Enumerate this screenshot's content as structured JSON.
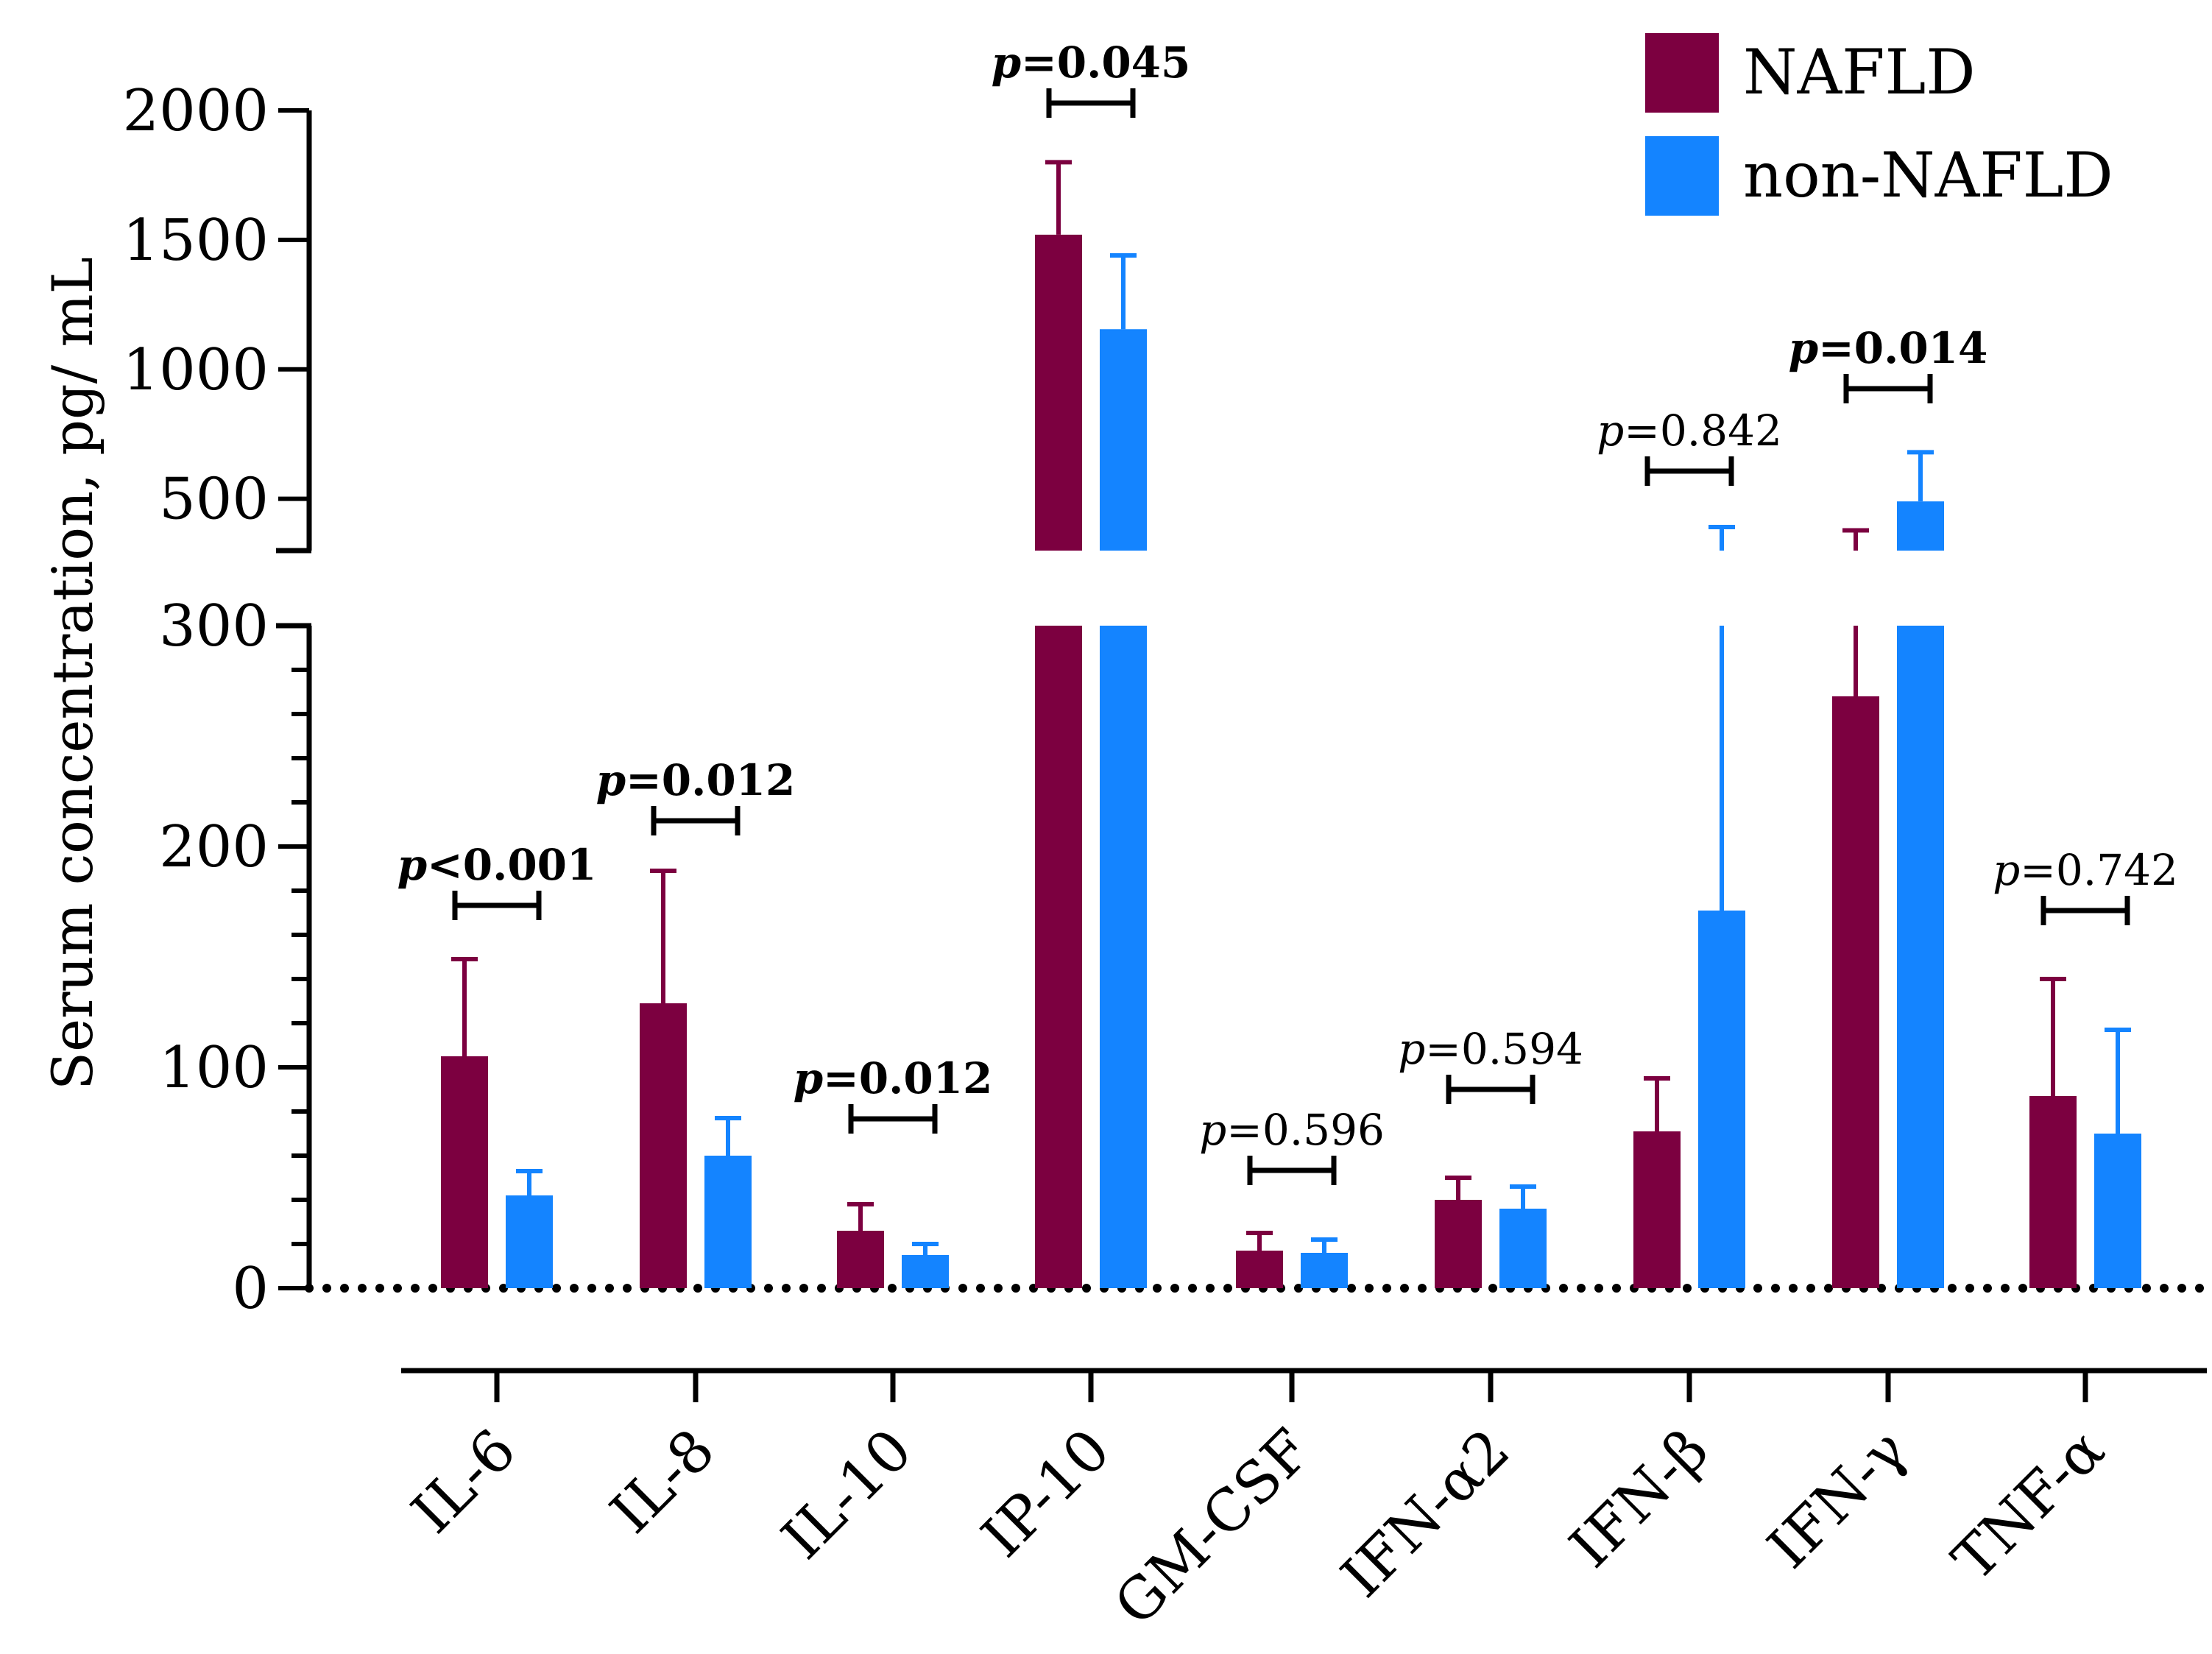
{
  "chart_data": {
    "type": "bar",
    "title": "",
    "xlabel": "",
    "ylabel": "Serum concentration, pg/ mL",
    "axis_break": {
      "lower_ylim": [
        0,
        300
      ],
      "upper_ylim": [
        300,
        2000
      ]
    },
    "yticks_lower": [
      "0",
      "100",
      "200",
      "300"
    ],
    "yticks_upper": [
      "500",
      "1000",
      "1500",
      "2000"
    ],
    "categories": [
      "IL-6",
      "IL-8",
      "IL-10",
      "IP-10",
      "GM-CSF",
      "IFN-α2",
      "IFN-β",
      "IFN-γ",
      "TNF-α"
    ],
    "series": [
      {
        "name": "NAFLD",
        "color": "#7c0040",
        "values": [
          105,
          129,
          26,
          1520,
          17,
          40,
          71,
          268,
          87
        ],
        "errors": [
          44,
          60,
          12,
          280,
          8,
          10,
          24,
          110,
          53
        ]
      },
      {
        "name": "non-NAFLD",
        "color": "#1484ff",
        "values": [
          42,
          60,
          15,
          1155,
          16,
          36,
          171,
          490,
          70
        ],
        "errors": [
          11,
          17,
          5,
          285,
          6,
          10,
          220,
          190,
          47
        ]
      }
    ],
    "pvalues": [
      {
        "prefix": "p",
        "text": "<0.001",
        "bold": true
      },
      {
        "prefix": "p",
        "text": "=0.012",
        "bold": true
      },
      {
        "prefix": "p",
        "text": "=0.012",
        "bold": true
      },
      {
        "prefix": "p",
        "text": "=0.045",
        "bold": true
      },
      {
        "prefix": "p",
        "text": "=0.596",
        "bold": false
      },
      {
        "prefix": "p",
        "text": "=0.594",
        "bold": false
      },
      {
        "prefix": "p",
        "text": "=0.842",
        "bold": false
      },
      {
        "prefix": "p",
        "text": "=0.014",
        "bold": true
      },
      {
        "prefix": "p",
        "text": "=0.742",
        "bold": false
      }
    ],
    "legend": {
      "position": "top-right",
      "entries": [
        "NAFLD",
        "non-NAFLD"
      ]
    },
    "reference_line": {
      "y": 0,
      "style": "dotted"
    }
  }
}
